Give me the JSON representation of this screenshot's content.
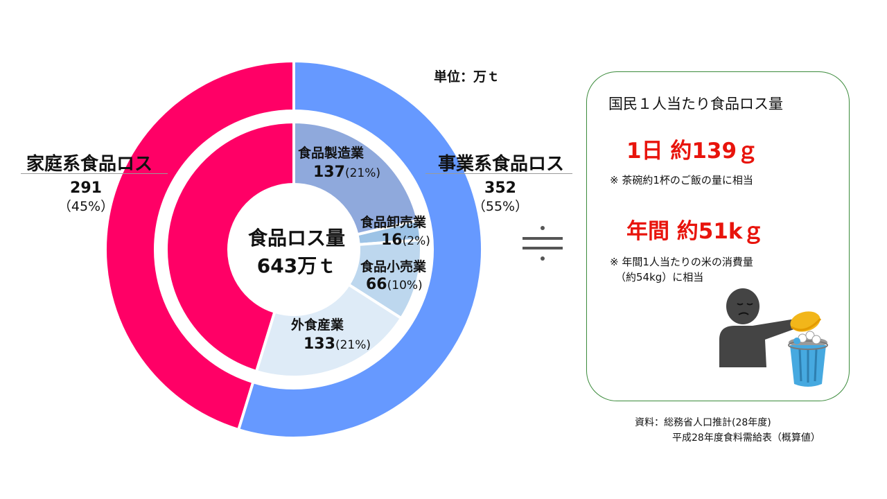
{
  "unit_label": "単位：万ｔ",
  "chart_data": {
    "type": "pie",
    "subtype": "nested-donut",
    "center": {
      "title": "食品ロス量",
      "total": "643万ｔ"
    },
    "outer_ring": [
      {
        "name": "家庭系食品ロス",
        "value": 291,
        "pct": "（45%）",
        "value_label": "291",
        "color": "#ff0066"
      },
      {
        "name": "事業系食品ロス",
        "value": 352,
        "pct": "（55%）",
        "value_label": "352",
        "color": "#6699ff"
      }
    ],
    "inner_ring": [
      {
        "name": "家庭系",
        "value": 291,
        "color": "#ff0066"
      },
      {
        "name": "食品製造業",
        "value": 137,
        "value_label": "137",
        "pct": "(21%)",
        "color": "#8fa9dc"
      },
      {
        "name": "食品卸売業",
        "value": 16,
        "value_label": "16",
        "pct": "(2%)",
        "color": "#9dc3e6"
      },
      {
        "name": "食品小売業",
        "value": 66,
        "value_label": "66",
        "pct": "(10%)",
        "color": "#bdd7ee"
      },
      {
        "name": "外食産業",
        "value": 133,
        "value_label": "133",
        "pct": "(21%)",
        "color": "#deebf7"
      }
    ]
  },
  "approx_symbol": "≒",
  "panel": {
    "title": "国民１人当たり食品ロス量",
    "daily": "1日 約139ｇ",
    "daily_note": "※ 茶碗約1杯のご飯の量に相当",
    "yearly": "年間 約51kｇ",
    "yearly_note_line1": "※ 年間1人当たりの米の消費量",
    "yearly_note_line2": "（約54kg）に相当",
    "illustration": "person-throwing-rice-into-trash-icon",
    "colors": {
      "border": "#3a8a3a",
      "accent": "#e8140c"
    }
  },
  "source": {
    "line1": "資料：総務省人口推計(28年度)",
    "line2": "平成28年度食料需給表（概算値）"
  }
}
